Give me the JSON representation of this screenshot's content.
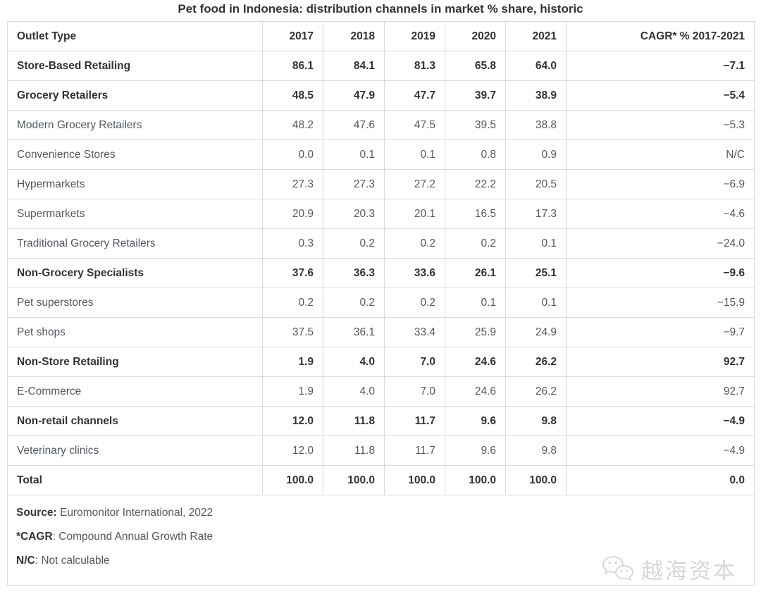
{
  "title": "Pet food in Indonesia: distribution channels in market % share, historic",
  "chart_data": {
    "type": "table",
    "columns": [
      "Outlet Type",
      "2017",
      "2018",
      "2019",
      "2020",
      "2021",
      "CAGR* % 2017-2021"
    ],
    "rows": [
      {
        "label": "Store-Based Retailing",
        "bold": true,
        "values": [
          86.1,
          84.1,
          81.3,
          65.8,
          64.0
        ],
        "cagr": -7.1
      },
      {
        "label": "Grocery Retailers",
        "bold": true,
        "values": [
          48.5,
          47.9,
          47.7,
          39.7,
          38.9
        ],
        "cagr": -5.4
      },
      {
        "label": "Modern Grocery Retailers",
        "bold": false,
        "values": [
          48.2,
          47.6,
          47.5,
          39.5,
          38.8
        ],
        "cagr": -5.3
      },
      {
        "label": "Convenience Stores",
        "bold": false,
        "values": [
          0.0,
          0.1,
          0.1,
          0.8,
          0.9
        ],
        "cagr": "N/C"
      },
      {
        "label": "Hypermarkets",
        "bold": false,
        "values": [
          27.3,
          27.3,
          27.2,
          22.2,
          20.5
        ],
        "cagr": -6.9
      },
      {
        "label": "Supermarkets",
        "bold": false,
        "values": [
          20.9,
          20.3,
          20.1,
          16.5,
          17.3
        ],
        "cagr": -4.6
      },
      {
        "label": "Traditional Grocery Retailers",
        "bold": false,
        "values": [
          0.3,
          0.2,
          0.2,
          0.2,
          0.1
        ],
        "cagr": -24.0
      },
      {
        "label": "Non-Grocery Specialists",
        "bold": true,
        "values": [
          37.6,
          36.3,
          33.6,
          26.1,
          25.1
        ],
        "cagr": -9.6
      },
      {
        "label": "Pet superstores",
        "bold": false,
        "values": [
          0.2,
          0.2,
          0.2,
          0.1,
          0.1
        ],
        "cagr": -15.9
      },
      {
        "label": "Pet shops",
        "bold": false,
        "values": [
          37.5,
          36.1,
          33.4,
          25.9,
          24.9
        ],
        "cagr": -9.7
      },
      {
        "label": "Non-Store Retailing",
        "bold": true,
        "values": [
          1.9,
          4.0,
          7.0,
          24.6,
          26.2
        ],
        "cagr": 92.7
      },
      {
        "label": "E-Commerce",
        "bold": false,
        "values": [
          1.9,
          4.0,
          7.0,
          24.6,
          26.2
        ],
        "cagr": 92.7
      },
      {
        "label": "Non-retail channels",
        "bold": true,
        "values": [
          12.0,
          11.8,
          11.7,
          9.6,
          9.8
        ],
        "cagr": -4.9
      },
      {
        "label": "Veterinary clinics",
        "bold": false,
        "values": [
          12.0,
          11.8,
          11.7,
          9.6,
          9.8
        ],
        "cagr": -4.9
      },
      {
        "label": "Total",
        "bold": true,
        "values": [
          100.0,
          100.0,
          100.0,
          100.0,
          100.0
        ],
        "cagr": 0.0
      }
    ],
    "value_format": "one-decimal",
    "units": "% market share"
  },
  "footnotes": [
    {
      "term": "Source:",
      "text": " Euromonitor International, 2022"
    },
    {
      "term": "*CAGR",
      "text": ": Compound Annual Growth Rate"
    },
    {
      "term": "N/C",
      "text": ": Not calculable"
    }
  ],
  "watermark": {
    "icon": "wechat-icon",
    "text": "越海资本"
  },
  "colors": {
    "title_text": "#333333",
    "bold_text": "#333333",
    "regular_text": "#54595e",
    "border": "#dbdbdb",
    "background": "#ffffff",
    "watermark": "#d6d6d6"
  }
}
